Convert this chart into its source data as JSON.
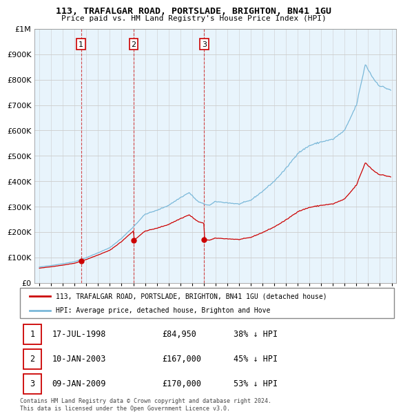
{
  "title": "113, TRAFALGAR ROAD, PORTSLADE, BRIGHTON, BN41 1GU",
  "subtitle": "Price paid vs. HM Land Registry's House Price Index (HPI)",
  "hpi_color": "#7ab8d9",
  "hpi_fill_color": "#ddeeff",
  "property_color": "#cc0000",
  "bg_color": "#ffffff",
  "grid_color": "#cccccc",
  "ylim_max": 1000000,
  "xlim_min": 1994.6,
  "xlim_max": 2025.4,
  "property_sales": [
    {
      "year": 1998.54,
      "price": 84950,
      "label": "1"
    },
    {
      "year": 2003.03,
      "price": 167000,
      "label": "2"
    },
    {
      "year": 2009.03,
      "price": 170000,
      "label": "3"
    }
  ],
  "legend_property": "113, TRAFALGAR ROAD, PORTSLADE, BRIGHTON, BN41 1GU (detached house)",
  "legend_hpi": "HPI: Average price, detached house, Brighton and Hove",
  "table_entries": [
    {
      "num": "1",
      "date": "17-JUL-1998",
      "price": "£84,950",
      "note": "38% ↓ HPI"
    },
    {
      "num": "2",
      "date": "10-JAN-2003",
      "price": "£167,000",
      "note": "45% ↓ HPI"
    },
    {
      "num": "3",
      "date": "09-JAN-2009",
      "price": "£170,000",
      "note": "53% ↓ HPI"
    }
  ],
  "footnote": "Contains HM Land Registry data © Crown copyright and database right 2024.\nThis data is licensed under the Open Government Licence v3.0."
}
